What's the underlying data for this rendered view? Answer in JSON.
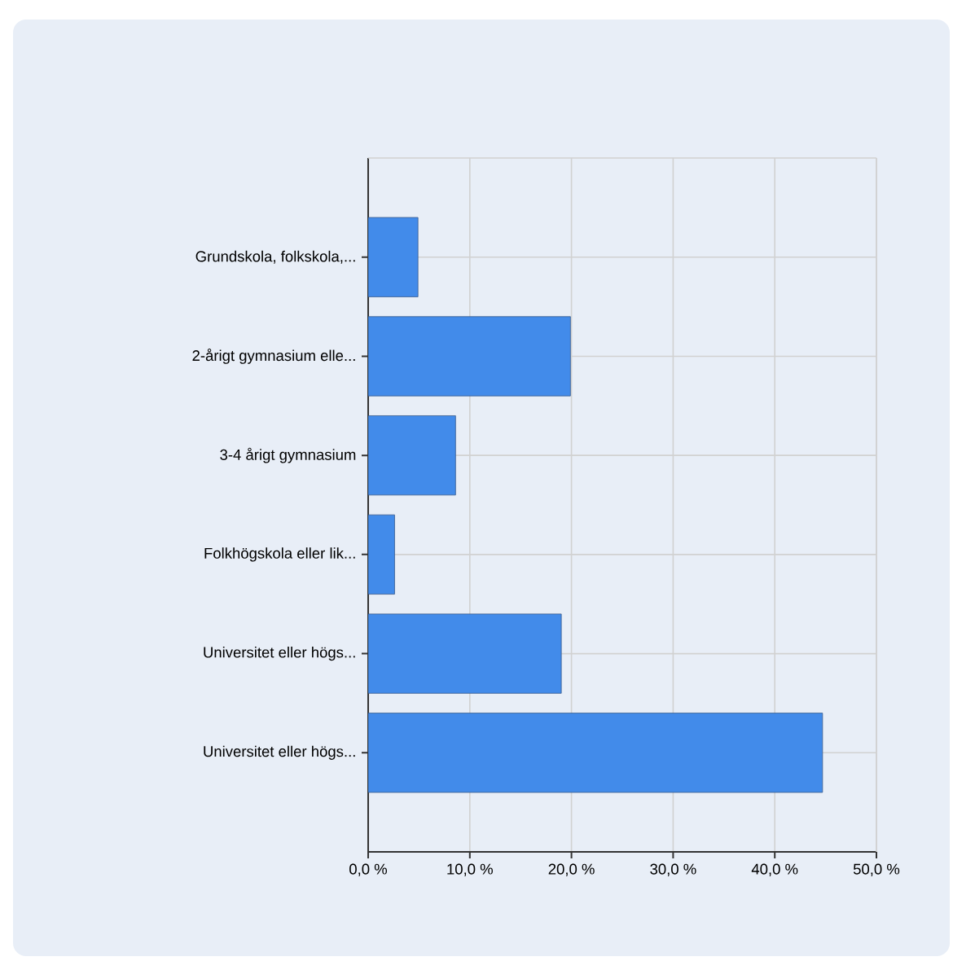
{
  "chart_data": {
    "type": "bar",
    "orientation": "horizontal",
    "categories": [
      "Grundskola, folkskola,...",
      "2-årigt gymnasium elle...",
      "3-4 årigt gymnasium",
      "Folkhögskola eller lik...",
      "Universitet eller högs...",
      "Universitet eller högs..."
    ],
    "values": [
      4.9,
      19.9,
      8.6,
      2.6,
      19.0,
      44.7
    ],
    "color": "#428bea",
    "xlim": [
      0,
      50
    ],
    "xticks": [
      {
        "value": 0,
        "label": "0,0 %"
      },
      {
        "value": 10,
        "label": "10,0 %"
      },
      {
        "value": 20,
        "label": "20,0 %"
      },
      {
        "value": 30,
        "label": "30,0 %"
      },
      {
        "value": 40,
        "label": "40,0 %"
      },
      {
        "value": 50,
        "label": "50,0 %"
      }
    ],
    "grid": true
  }
}
